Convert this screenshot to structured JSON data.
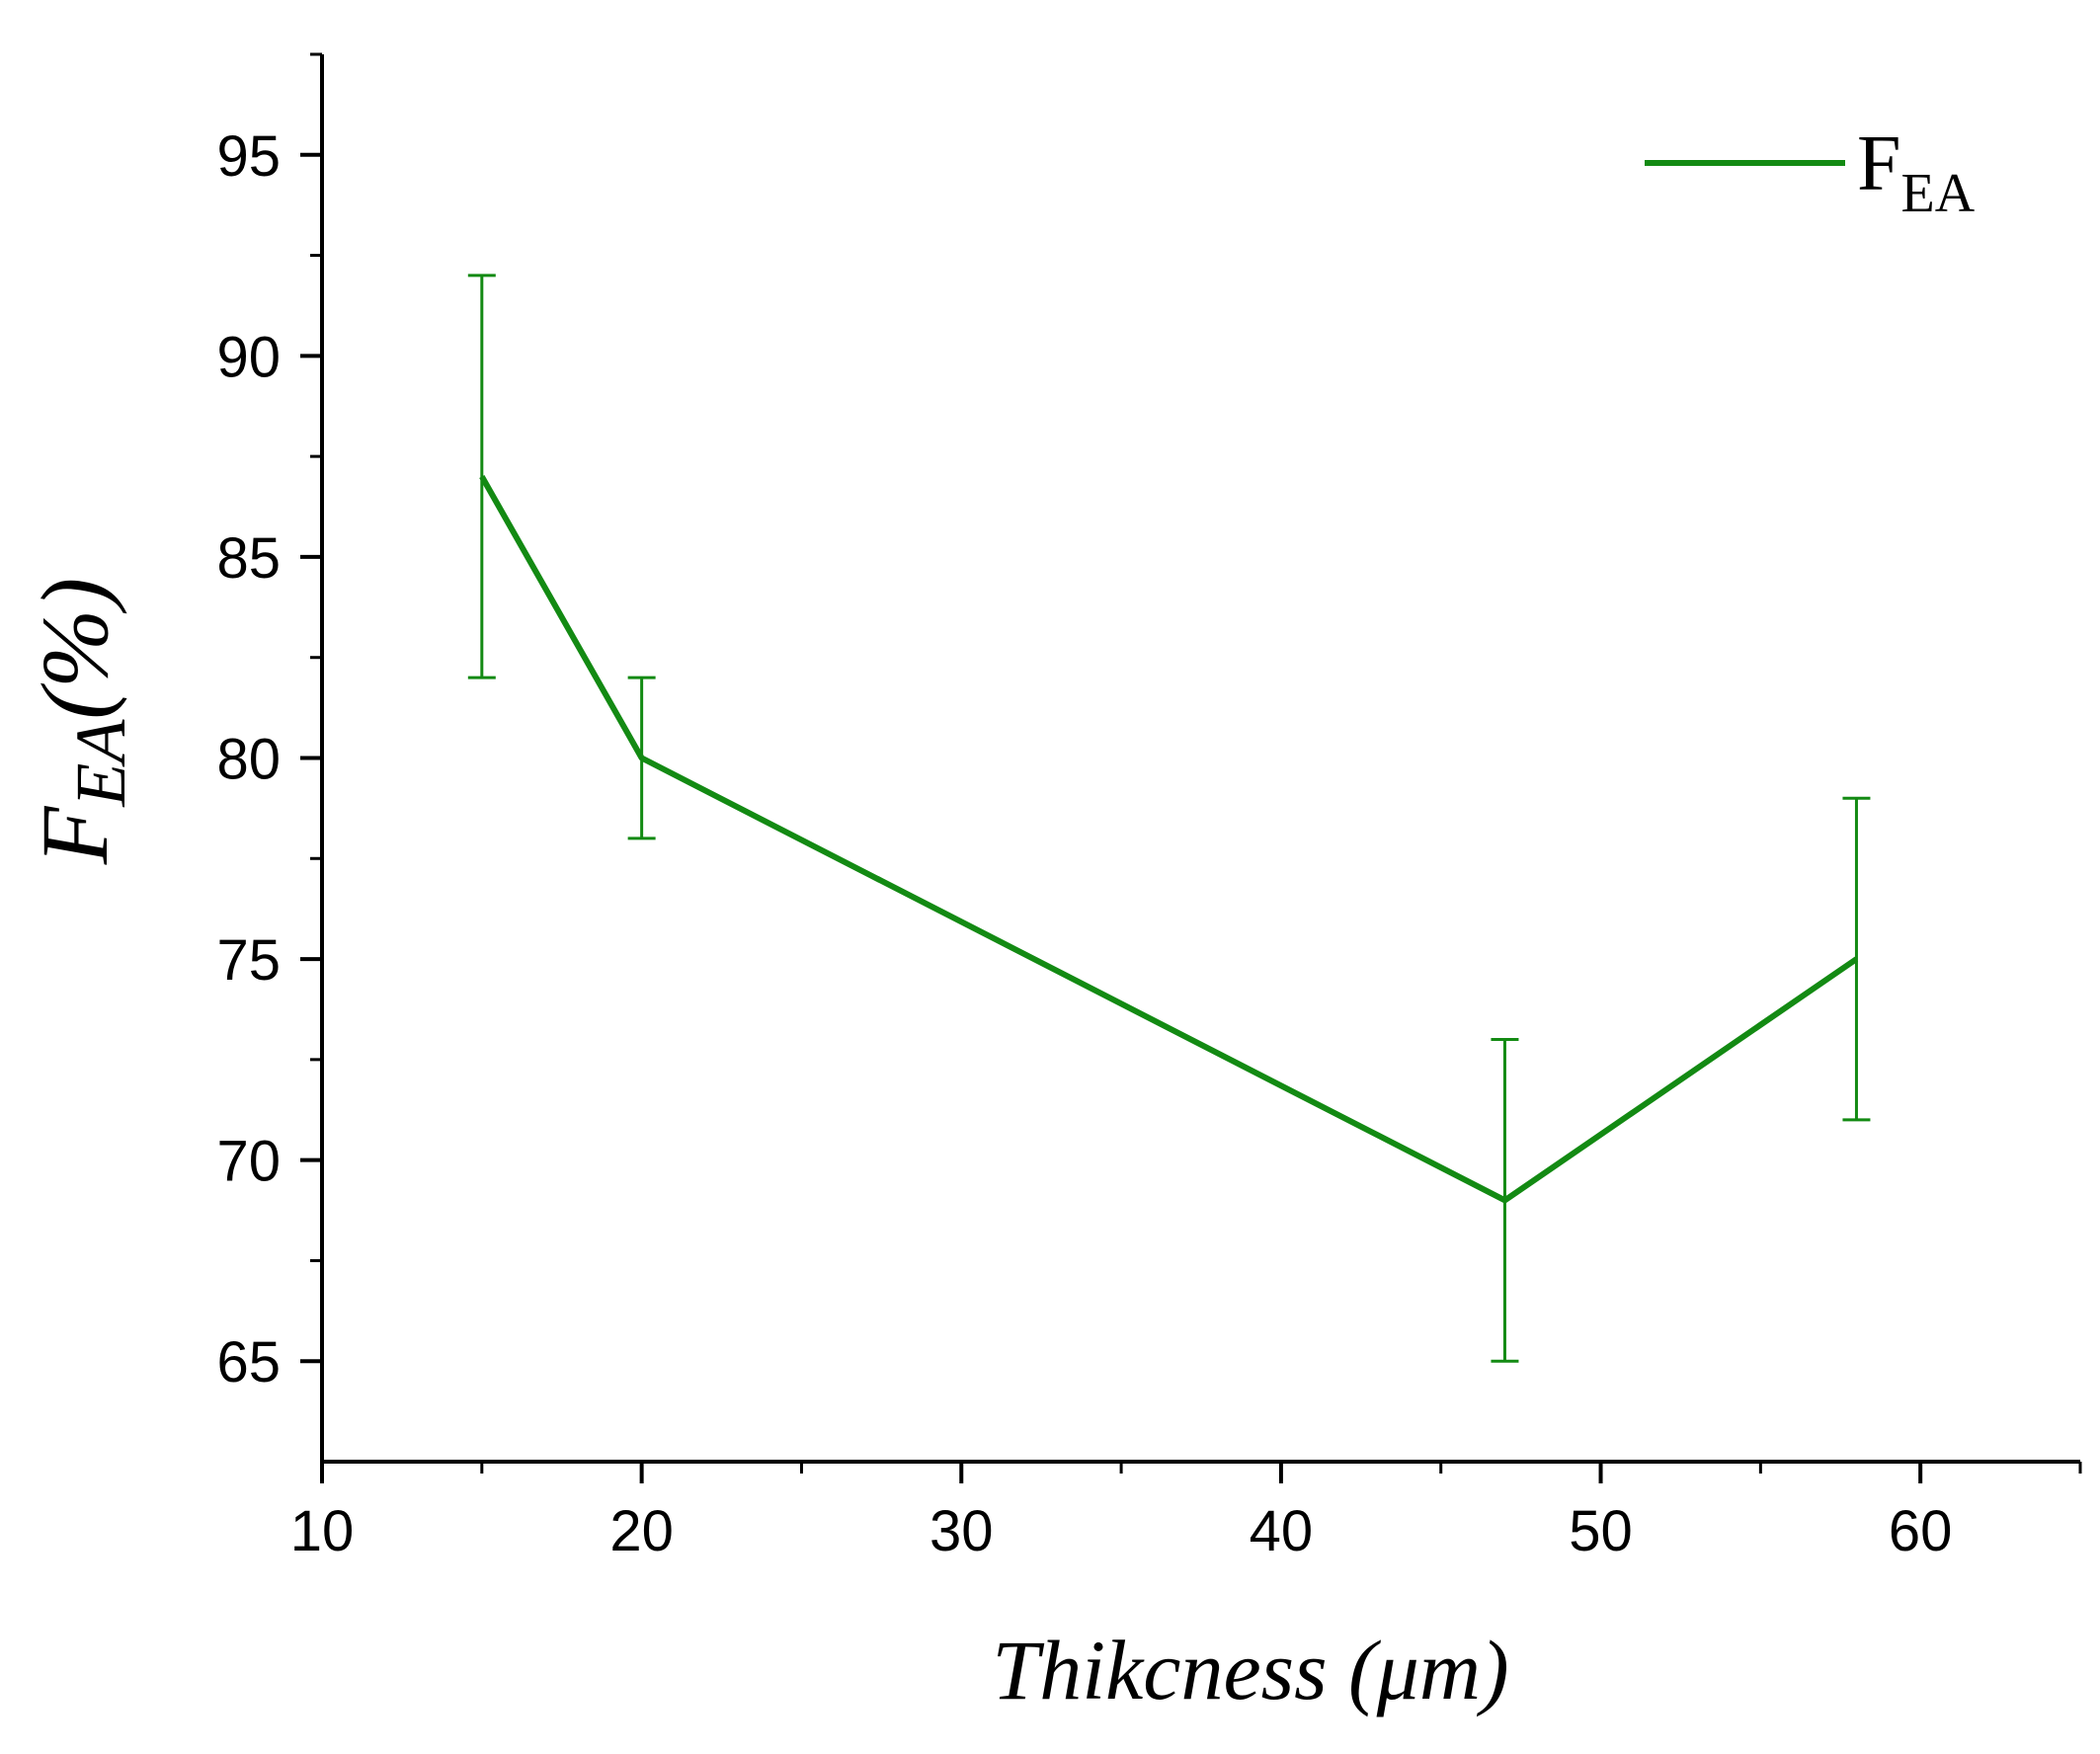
{
  "chart_data": {
    "type": "line",
    "title": "",
    "xlabel": "Thikcness (μm)",
    "ylabel": {
      "main": "F",
      "sub": "EA",
      "suffix": "(%)"
    },
    "xlim": [
      10,
      65
    ],
    "ylim": [
      62.5,
      97.5
    ],
    "xticks": [
      10,
      20,
      30,
      40,
      50,
      60
    ],
    "xtick_labels": [
      "10",
      "20",
      "30",
      "40",
      "50",
      "60"
    ],
    "xminor": [
      15,
      25,
      35,
      45,
      55,
      65
    ],
    "yticks": [
      65,
      70,
      75,
      80,
      85,
      90,
      95
    ],
    "ytick_labels": [
      "65",
      "70",
      "75",
      "80",
      "85",
      "90",
      "95"
    ],
    "yminor": [
      67.5,
      72.5,
      77.5,
      82.5,
      87.5,
      92.5,
      97.5
    ],
    "series": [
      {
        "name": "F_EA",
        "legend_main": "F",
        "legend_sub": "EA",
        "color": "#138a13",
        "x": [
          15,
          20,
          47,
          58
        ],
        "y": [
          87,
          80,
          69,
          75
        ],
        "error_low": [
          82,
          78,
          65,
          71
        ],
        "error_high": [
          92,
          82,
          73,
          79
        ]
      }
    ],
    "legend_position": "top-right",
    "grid": false
  }
}
